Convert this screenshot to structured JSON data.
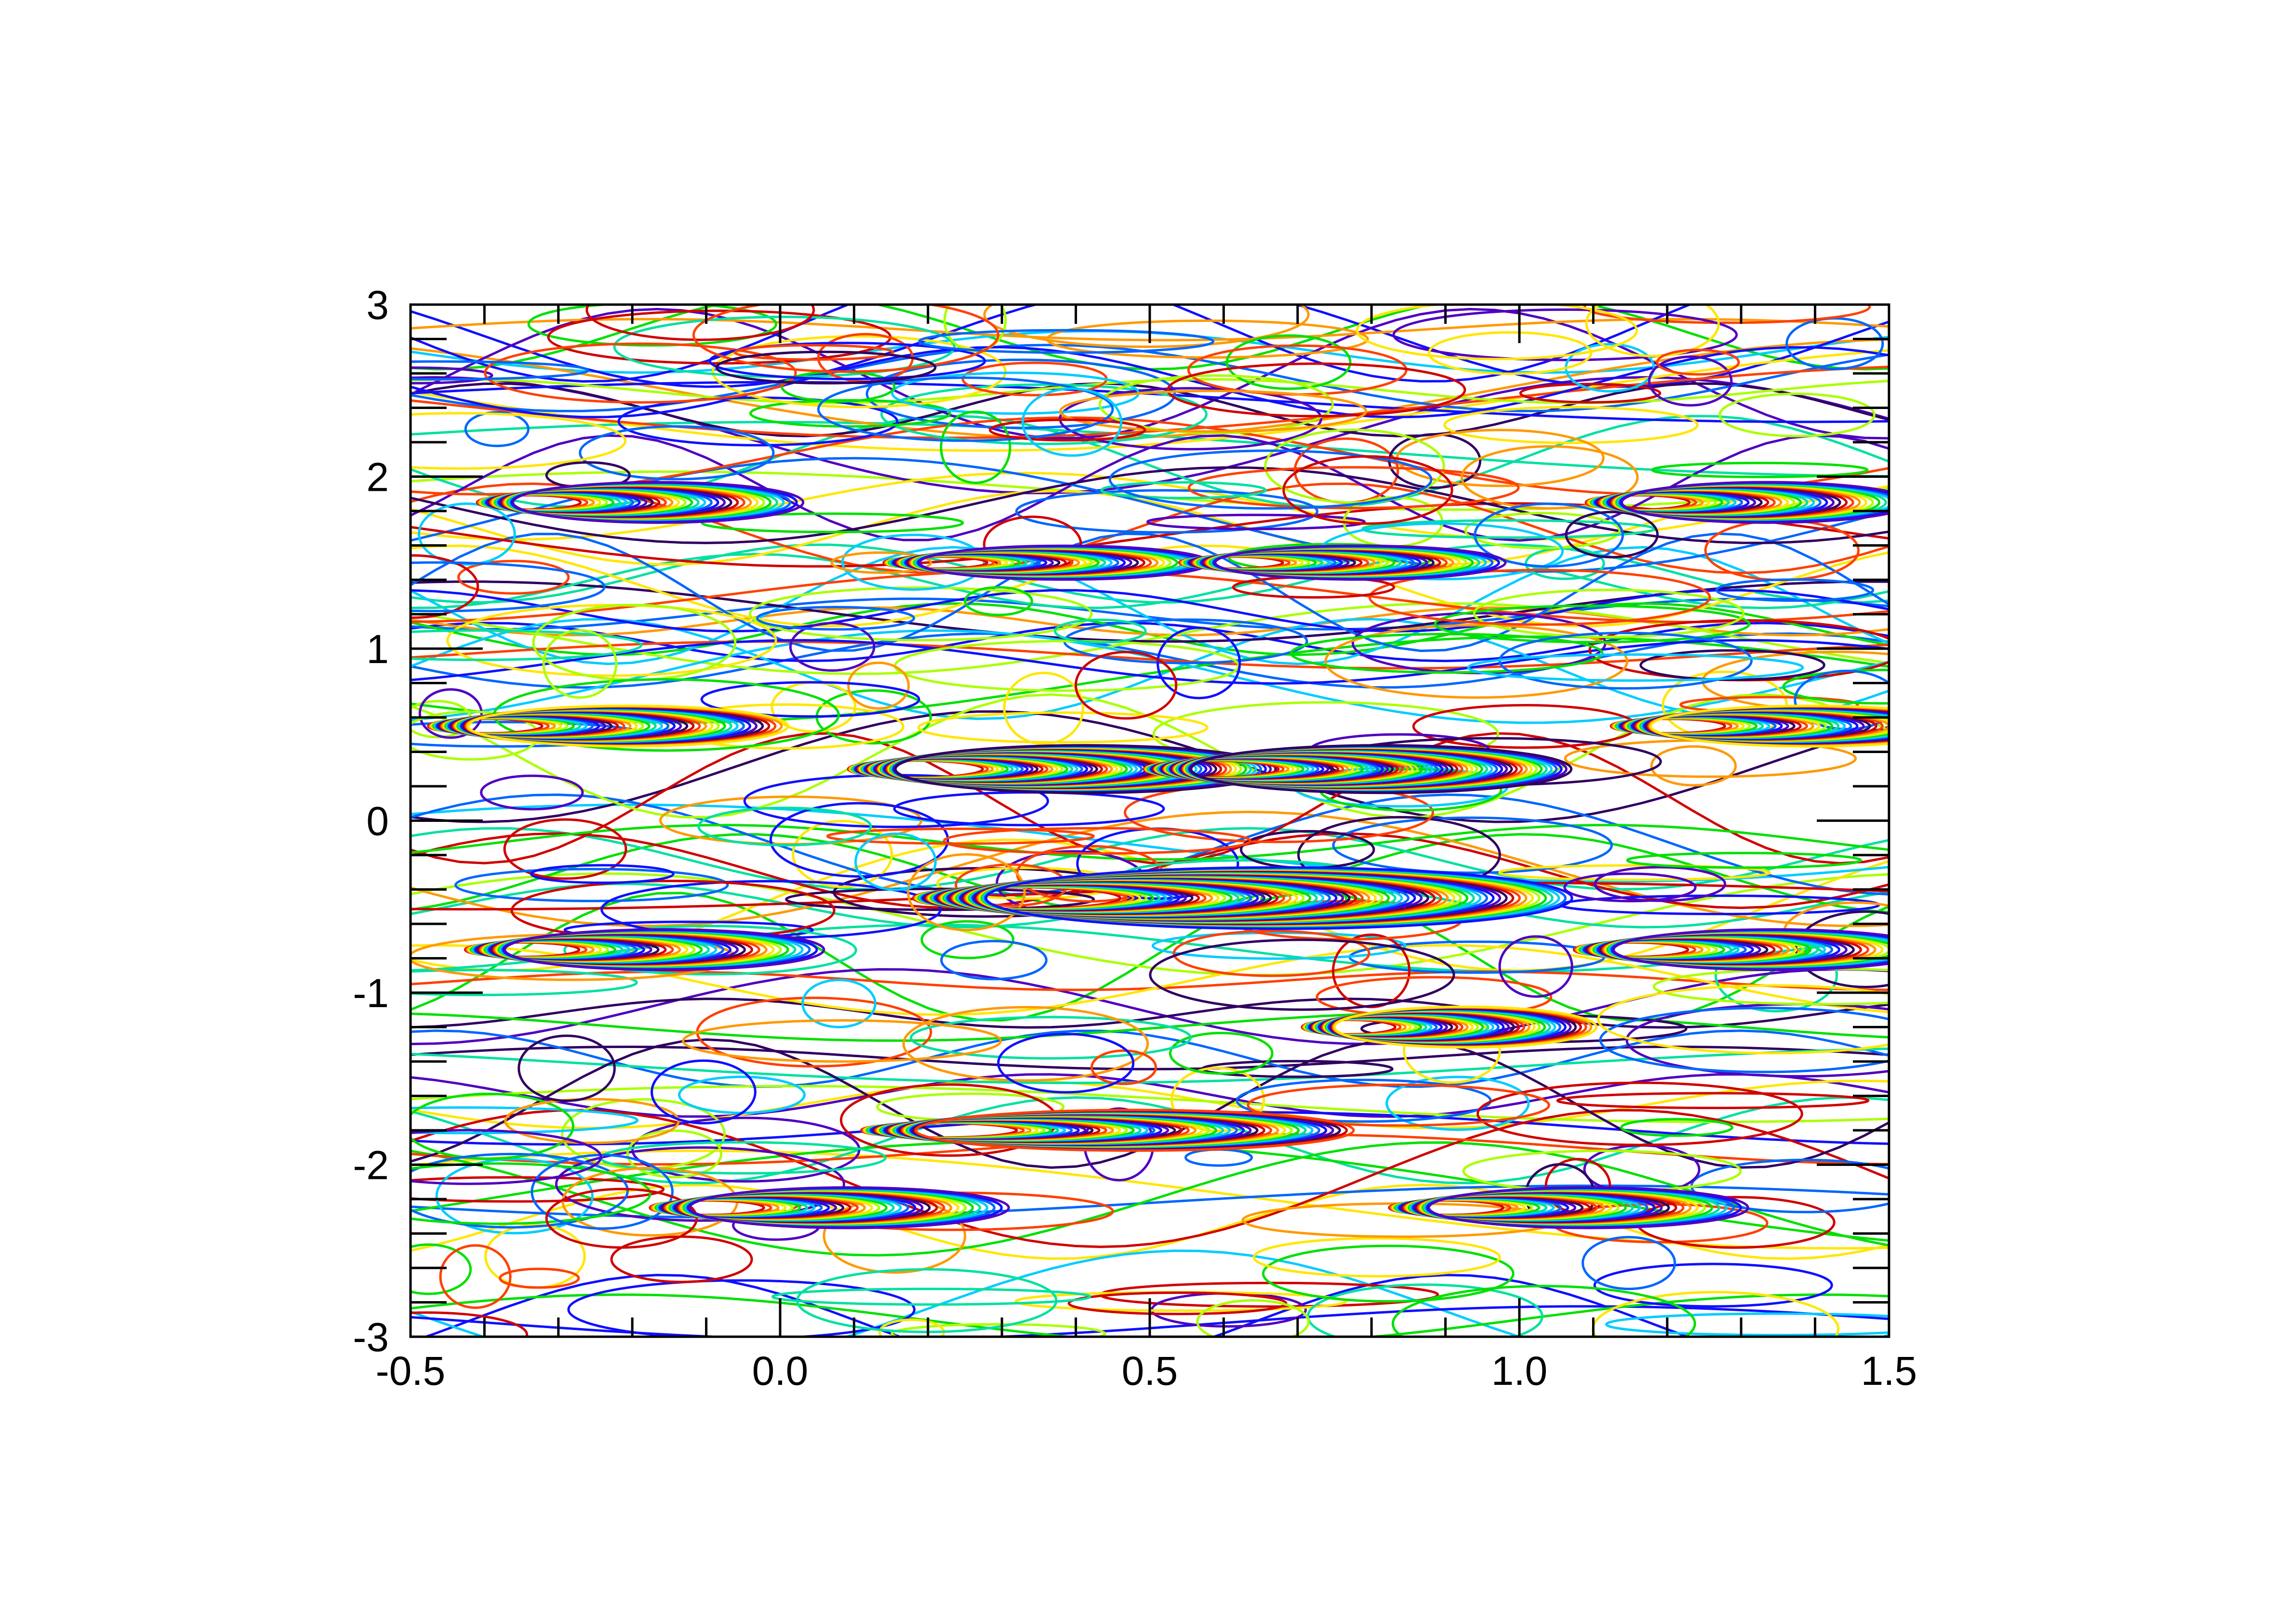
{
  "chart_data": {
    "type": "line",
    "title": "",
    "xlabel": "",
    "ylabel": "",
    "xlim": [
      -0.5,
      1.5
    ],
    "ylim": [
      -3,
      3
    ],
    "x_ticks": [
      -0.5,
      0.0,
      0.5,
      1.0,
      1.5
    ],
    "x_tick_labels": [
      "-0.5",
      "0.0",
      "0.5",
      "1.0",
      "1.5"
    ],
    "y_ticks": [
      -3,
      -2,
      -1,
      0,
      1,
      2,
      3
    ],
    "y_tick_labels": [
      "-3",
      "-2",
      "-1",
      "0",
      "1",
      "2",
      "3"
    ],
    "grid": false,
    "legend": false,
    "colormap": [
      "#d00000",
      "#ff4000",
      "#ff9900",
      "#ffe600",
      "#aaff00",
      "#00e000",
      "#00e0a0",
      "#00ccff",
      "#0066ff",
      "#1010ff",
      "#5000c0",
      "#300060"
    ],
    "description_note": "",
    "families": [
      {
        "cx": 0.3,
        "cy": 0.3,
        "rx": 0.26,
        "ry": 0.14,
        "count": 60
      },
      {
        "cx": 0.7,
        "cy": 0.3,
        "rx": 0.26,
        "ry": 0.14,
        "count": 60
      },
      {
        "cx": 0.5,
        "cy": -0.45,
        "rx": 0.4,
        "ry": 0.18,
        "count": 70
      },
      {
        "cx": 0.35,
        "cy": -1.8,
        "rx": 0.3,
        "ry": 0.12,
        "count": 50
      },
      {
        "cx": 0.85,
        "cy": -1.2,
        "rx": 0.18,
        "ry": 0.12,
        "count": 40
      },
      {
        "cx": -0.3,
        "cy": 0.55,
        "rx": 0.22,
        "ry": 0.12,
        "count": 40
      },
      {
        "cx": 1.3,
        "cy": 0.55,
        "rx": 0.22,
        "ry": 0.12,
        "count": 40
      },
      {
        "cx": -0.25,
        "cy": 1.85,
        "rx": 0.2,
        "ry": 0.12,
        "count": 35
      },
      {
        "cx": 1.25,
        "cy": 1.85,
        "rx": 0.2,
        "ry": 0.12,
        "count": 35
      },
      {
        "cx": 0.3,
        "cy": 1.5,
        "rx": 0.2,
        "ry": 0.1,
        "count": 35
      },
      {
        "cx": 0.7,
        "cy": 1.5,
        "rx": 0.2,
        "ry": 0.1,
        "count": 35
      },
      {
        "cx": -0.25,
        "cy": -0.75,
        "rx": 0.22,
        "ry": 0.12,
        "count": 35
      },
      {
        "cx": 1.25,
        "cy": -0.75,
        "rx": 0.22,
        "ry": 0.12,
        "count": 35
      },
      {
        "cx": 0.0,
        "cy": -2.25,
        "rx": 0.22,
        "ry": 0.12,
        "count": 35
      },
      {
        "cx": 1.0,
        "cy": -2.25,
        "rx": 0.22,
        "ry": 0.12,
        "count": 35
      }
    ],
    "random_loops": 260,
    "streamlines": 90
  }
}
